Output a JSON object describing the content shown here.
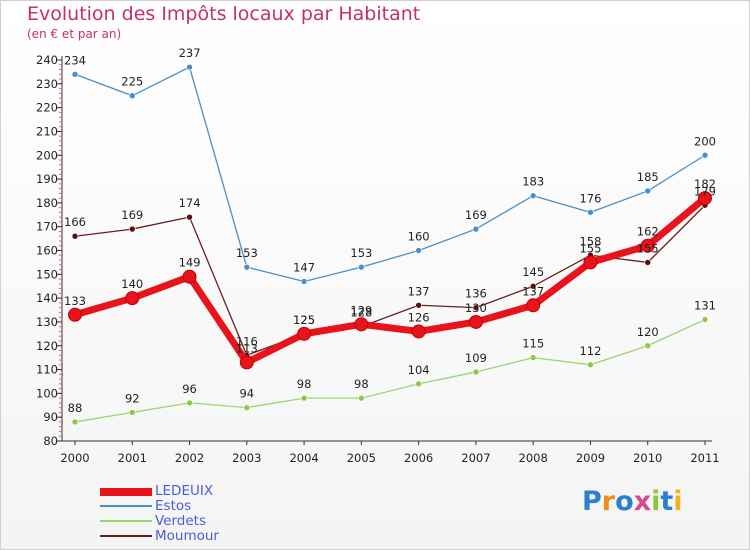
{
  "header": {
    "title": "Evolution des Impôts locaux par Habitant",
    "subtitle": "(en € et par an)"
  },
  "colors": {
    "title": "#c4306e",
    "legend_text": "#4a5ed8",
    "axis": "#333333",
    "grid": "#e06080"
  },
  "chart_data": {
    "type": "line",
    "x": [
      "2000",
      "2001",
      "2002",
      "2003",
      "2004",
      "2005",
      "2006",
      "2007",
      "2008",
      "2009",
      "2010",
      "2011"
    ],
    "ylim": [
      80,
      240
    ],
    "yticks": [
      80,
      90,
      100,
      110,
      120,
      130,
      140,
      150,
      160,
      170,
      180,
      190,
      200,
      210,
      220,
      230,
      240
    ],
    "grid": false,
    "legend_position": "bottom-left",
    "series": [
      {
        "name": "Estos",
        "color": "#4a90c8",
        "dot": "#4a90c8",
        "values": [
          234,
          225,
          237,
          153,
          147,
          153,
          160,
          169,
          183,
          176,
          185,
          200
        ]
      },
      {
        "name": "Verdets",
        "color": "#9ed46a",
        "dot": "#8cc84a",
        "values": [
          88,
          92,
          96,
          94,
          98,
          98,
          104,
          109,
          115,
          112,
          120,
          131
        ]
      },
      {
        "name": "Moumour",
        "color": "#6b1e1e",
        "dot": "#5a1010",
        "values": [
          166,
          169,
          174,
          116,
          125,
          128,
          137,
          136,
          145,
          158,
          155,
          179
        ]
      },
      {
        "name": "LEDEUIX",
        "color": "#e8141b",
        "dot": "#e8141b",
        "values": [
          133,
          140,
          149,
          113,
          125,
          129,
          126,
          130,
          137,
          155,
          162,
          182
        ]
      }
    ],
    "labels": {
      "Estos": [
        "234",
        "225",
        "237",
        "153",
        "147",
        "153",
        "160",
        "169",
        "183",
        "176",
        "185",
        "200"
      ],
      "Verdets": [
        "88",
        "92",
        "96",
        "94",
        "98",
        "98",
        "104",
        "109",
        "115",
        "112",
        "120",
        "131"
      ],
      "Moumour": [
        "166",
        "169",
        "174",
        "116",
        "125",
        "128",
        "137",
        "136",
        "145",
        "158",
        "155",
        "179"
      ],
      "LEDEUIX": [
        "133",
        "140",
        "149",
        "113",
        "125",
        "129",
        "126",
        "130",
        "137",
        "155",
        "162",
        "182"
      ]
    }
  },
  "legend": [
    {
      "label": "LEDEUIX",
      "color": "#e8141b"
    },
    {
      "label": "Estos",
      "color": "#4a90c8"
    },
    {
      "label": "Verdets",
      "color": "#9ed46a"
    },
    {
      "label": "Moumour",
      "color": "#6b1e1e"
    }
  ],
  "logo": {
    "text": "Proxiti",
    "letter_colors": [
      "#2a7fd0",
      "#f08c1a",
      "#2a7fd0",
      "#d84a8c",
      "#8cc63f",
      "#2a7fd0",
      "#f0b41a"
    ]
  }
}
